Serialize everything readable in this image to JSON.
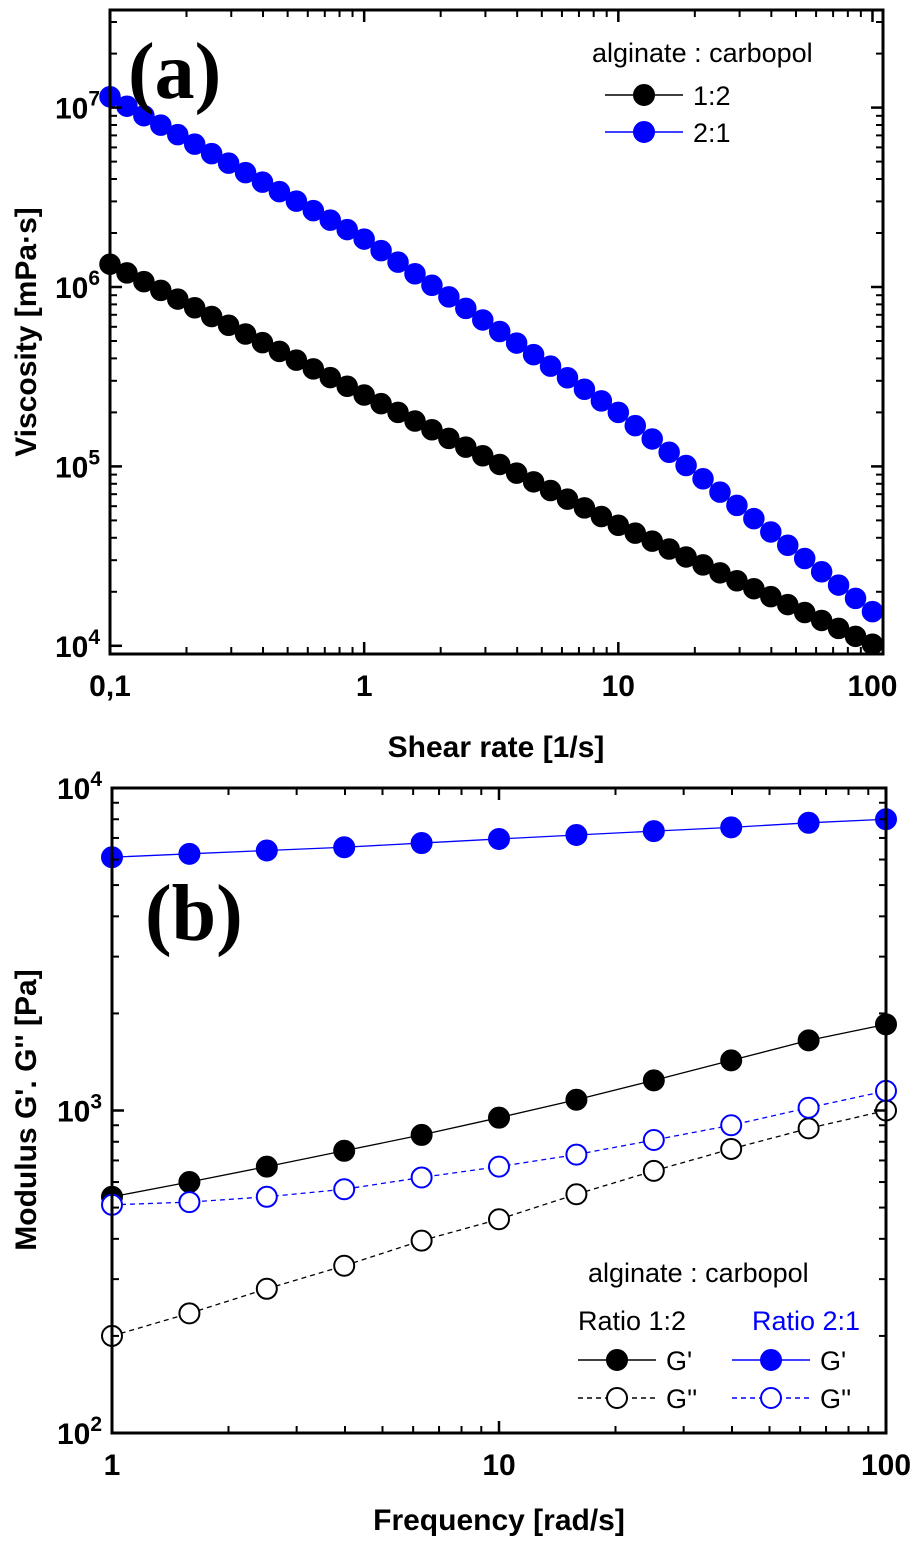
{
  "chart_data": [
    {
      "type": "scatter",
      "panel_label": "(a)",
      "xlabel": "Shear rate [1/s]",
      "ylabel": "Viscosity [mPa·s]",
      "xscale": "log",
      "yscale": "log",
      "xlim": [
        0.1,
        110
      ],
      "ylim": [
        9000,
        35000000
      ],
      "xticks": [
        {
          "value": 0.1,
          "label": "0,1"
        },
        {
          "value": 1,
          "label": "1"
        },
        {
          "value": 10,
          "label": "10"
        },
        {
          "value": 100,
          "label": "100"
        }
      ],
      "yticks": [
        {
          "value": 10000,
          "base": "10",
          "exp": "4"
        },
        {
          "value": 100000,
          "base": "10",
          "exp": "5"
        },
        {
          "value": 1000000,
          "base": "10",
          "exp": "6"
        },
        {
          "value": 10000000,
          "base": "10",
          "exp": "7"
        }
      ],
      "legend_title": "alginate : carbopol",
      "legend_position": "top-right",
      "series": [
        {
          "name": "1:2",
          "color": "#000000",
          "filled": true,
          "line_style": "solid",
          "x_range": [
            0.1,
            100
          ],
          "n_points": 46,
          "log_anchors": [
            [
              0.1,
              1340000
            ],
            [
              1,
              250000
            ],
            [
              10,
              47000
            ],
            [
              100,
              10200
            ]
          ]
        },
        {
          "name": "2:1",
          "color": "#0000ff",
          "filled": true,
          "line_style": "solid",
          "x_range": [
            0.1,
            100
          ],
          "n_points": 46,
          "log_anchors": [
            [
              0.1,
              11500000
            ],
            [
              1,
              1850000
            ],
            [
              10,
              200000
            ],
            [
              100,
              15500
            ]
          ]
        }
      ]
    },
    {
      "type": "line",
      "panel_label": "(b)",
      "xlabel": "Frequency [rad/s]",
      "ylabel": "Modulus G'. G'' [Pa]",
      "xscale": "log",
      "yscale": "log",
      "xlim": [
        1,
        100
      ],
      "ylim": [
        100,
        10000
      ],
      "xticks": [
        {
          "value": 1,
          "label": "1"
        },
        {
          "value": 10,
          "label": "10"
        },
        {
          "value": 100,
          "label": "100"
        }
      ],
      "yticks": [
        {
          "value": 100,
          "base": "10",
          "exp": "2"
        },
        {
          "value": 1000,
          "base": "10",
          "exp": "3"
        },
        {
          "value": 10000,
          "base": "10",
          "exp": "4"
        }
      ],
      "x": [
        1,
        1.585,
        2.512,
        3.981,
        6.31,
        10,
        15.85,
        25.12,
        39.81,
        63.1,
        100
      ],
      "legend_title": "alginate : carbopol",
      "legend_groups": [
        "Ratio 1:2",
        "Ratio 2:1"
      ],
      "legend_position": "bottom-right",
      "series": [
        {
          "name": "G'",
          "group": "Ratio 1:2",
          "color": "#000000",
          "filled": true,
          "line_style": "solid",
          "values": [
            540,
            600,
            670,
            750,
            840,
            950,
            1080,
            1240,
            1430,
            1650,
            1850
          ]
        },
        {
          "name": "G''",
          "group": "Ratio 1:2",
          "color": "#000000",
          "filled": false,
          "line_style": "dashed",
          "values": [
            200,
            235,
            280,
            330,
            395,
            460,
            550,
            650,
            760,
            880,
            1000
          ]
        },
        {
          "name": "G'",
          "group": "Ratio 2:1",
          "color": "#0000ff",
          "filled": true,
          "line_style": "solid",
          "values": [
            6100,
            6250,
            6400,
            6550,
            6750,
            6950,
            7150,
            7350,
            7550,
            7800,
            8000
          ]
        },
        {
          "name": "G''",
          "group": "Ratio 2:1",
          "color": "#0000ff",
          "filled": false,
          "line_style": "dashed",
          "values": [
            510,
            520,
            540,
            570,
            620,
            670,
            730,
            810,
            900,
            1020,
            1150
          ]
        }
      ]
    }
  ]
}
